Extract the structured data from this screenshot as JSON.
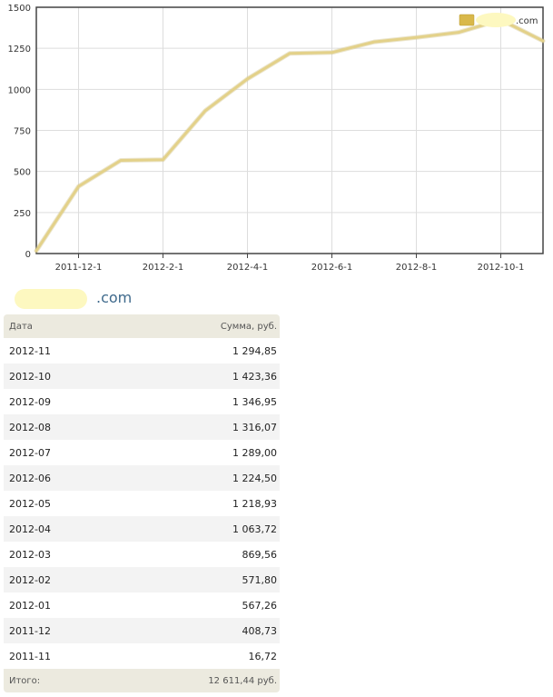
{
  "chart_data": {
    "type": "line",
    "x": [
      "2011-11-1",
      "2011-12-1",
      "2012-1-1",
      "2012-2-1",
      "2012-3-1",
      "2012-4-1",
      "2012-5-1",
      "2012-6-1",
      "2012-7-1",
      "2012-8-1",
      "2012-9-1",
      "2012-10-1",
      "2012-11-1"
    ],
    "x_tick_labels": [
      "2011-12-1",
      "2012-2-1",
      "2012-4-1",
      "2012-6-1",
      "2012-8-1",
      "2012-10-1"
    ],
    "series": [
      {
        "name": ".com",
        "values": [
          16.72,
          408.73,
          567.26,
          571.8,
          869.56,
          1063.72,
          1218.93,
          1224.5,
          1289.0,
          1316.07,
          1346.95,
          1423.36,
          1294.85
        ]
      }
    ],
    "ylim": [
      0,
      1500
    ],
    "y_ticks": [
      "0",
      "250",
      "500",
      "750",
      "1000",
      "1250",
      "1500"
    ],
    "grid": true,
    "legend": "top-right",
    "line_color": "#e3d189",
    "legend_swatch_color": "#d9b84a"
  },
  "site_suffix": ".com",
  "table": {
    "header_date": "Дата",
    "header_sum": "Сумма, руб.",
    "rows": [
      {
        "date": "2012-11",
        "sum": "1 294,85"
      },
      {
        "date": "2012-10",
        "sum": "1 423,36"
      },
      {
        "date": "2012-09",
        "sum": "1 346,95"
      },
      {
        "date": "2012-08",
        "sum": "1 316,07"
      },
      {
        "date": "2012-07",
        "sum": "1 289,00"
      },
      {
        "date": "2012-06",
        "sum": "1 224,50"
      },
      {
        "date": "2012-05",
        "sum": "1 218,93"
      },
      {
        "date": "2012-04",
        "sum": "1 063,72"
      },
      {
        "date": "2012-03",
        "sum": "869,56"
      },
      {
        "date": "2012-02",
        "sum": "571,80"
      },
      {
        "date": "2012-01",
        "sum": "567,26"
      },
      {
        "date": "2011-12",
        "sum": "408,73"
      },
      {
        "date": "2011-11",
        "sum": "16,72"
      }
    ],
    "total_label": "Итого:",
    "total_value": "12 611,44 руб."
  }
}
